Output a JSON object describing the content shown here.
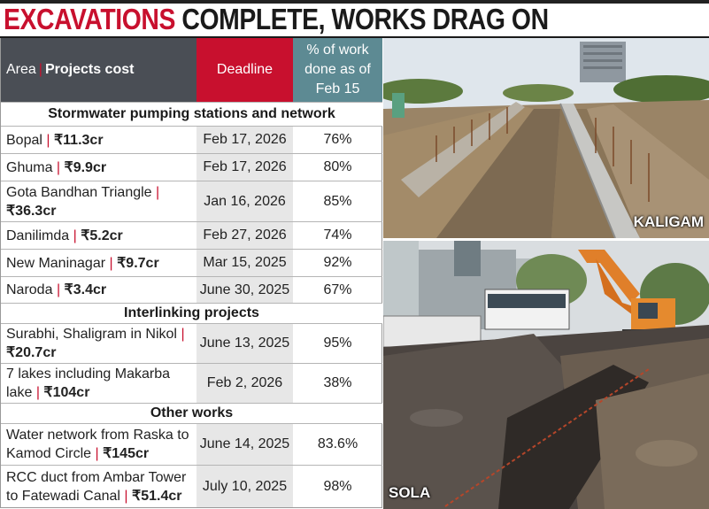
{
  "headline": {
    "part1": "EXCAVATIONS",
    "part2": "COMPLETE, WORKS DRAG ON"
  },
  "table": {
    "header": {
      "area_label": "Area",
      "cost_label": "Projects cost",
      "deadline_label": "Deadline",
      "pct_label": "% of work done as of Feb 15"
    },
    "sections": [
      {
        "title": "Stormwater pumping stations and network",
        "rows": [
          {
            "area": "Bopal",
            "cost": "₹11.3cr",
            "deadline": "Feb 17, 2026",
            "pct": "76%"
          },
          {
            "area": "Ghuma",
            "cost": "₹9.9cr",
            "deadline": "Feb 17, 2026",
            "pct": "80%"
          },
          {
            "area": "Gota Bandhan Triangle",
            "cost": "₹36.3cr",
            "deadline": "Jan 16, 2026",
            "pct": "85%"
          },
          {
            "area": "Danilimda",
            "cost": "₹5.2cr",
            "deadline": "Feb 27, 2026",
            "pct": "74%"
          },
          {
            "area": "New Maninagar",
            "cost": "₹9.7cr",
            "deadline": "Mar 15, 2025",
            "pct": "92%"
          },
          {
            "area": "Naroda",
            "cost": "₹3.4cr",
            "deadline": "June 30, 2025",
            "pct": "67%"
          }
        ]
      },
      {
        "title": "Interlinking projects",
        "rows": [
          {
            "area": "Surabhi, Shaligram in Nikol",
            "cost": "₹20.7cr",
            "deadline": "June 13, 2025",
            "pct": "95%"
          },
          {
            "area": "7 lakes including Makarba lake",
            "cost": "₹104cr",
            "deadline": "Feb 2, 2026",
            "pct": "38%"
          }
        ]
      },
      {
        "title": "Other works",
        "rows": [
          {
            "area": "Water network from Raska to Kamod Circle",
            "cost": "₹145cr",
            "deadline": "June 14, 2025",
            "pct": "83.6%"
          },
          {
            "area": "RCC duct from Ambar Tower to Fatewadi Canal",
            "cost": "₹51.4cr",
            "deadline": "July 10, 2025",
            "pct": "98%"
          }
        ]
      }
    ]
  },
  "photos": {
    "top_caption": "KALIGAM",
    "bottom_caption": "SOLA"
  },
  "colors": {
    "accent_red": "#c8102e",
    "header_gray": "#4a4e55",
    "header_teal": "#5d8a93",
    "deadline_bg": "#e7e7e7"
  }
}
